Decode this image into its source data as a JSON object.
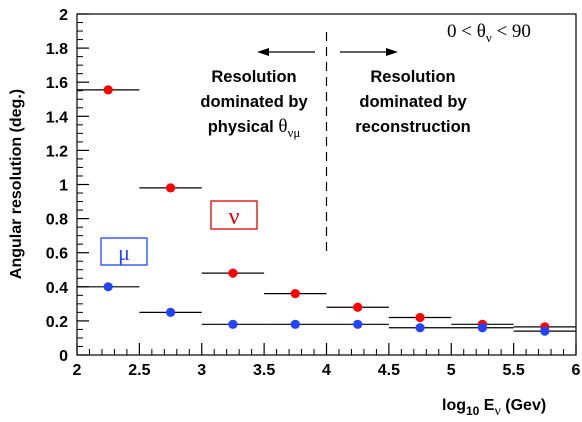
{
  "chart_data": {
    "type": "scatter",
    "xlabel": {
      "prefix": "log",
      "sub": "10",
      "main": " E",
      "var_sub": "ν",
      "unit": " (Gev)"
    },
    "ylabel": "Angular resolution (deg.)",
    "xlim": [
      2,
      6
    ],
    "ylim": [
      0,
      2
    ],
    "xticks": [
      "2",
      "2.5",
      "3",
      "3.5",
      "4",
      "4.5",
      "5",
      "5.5",
      "6"
    ],
    "yticks": [
      "0",
      "0.2",
      "0.4",
      "0.6",
      "0.8",
      "1",
      "1.2",
      "1.4",
      "1.6",
      "1.8",
      "2"
    ],
    "x_bin_half_width": 0.25,
    "series": [
      {
        "name": "ν",
        "color": "#ff0000",
        "x": [
          2.25,
          2.75,
          3.25,
          3.75,
          4.25,
          4.75,
          5.25,
          5.75
        ],
        "y": [
          1.555,
          0.98,
          0.48,
          0.36,
          0.28,
          0.22,
          0.18,
          0.165
        ]
      },
      {
        "name": "μ",
        "color": "#2244ff",
        "x": [
          2.25,
          2.75,
          3.25,
          3.75,
          4.25,
          4.75,
          5.25,
          5.75
        ],
        "y": [
          0.4,
          0.25,
          0.18,
          0.18,
          0.18,
          0.16,
          0.16,
          0.14
        ]
      }
    ],
    "legend_labels": {
      "nu": "ν",
      "mu": "μ"
    },
    "range_label": {
      "left": "0 < θ",
      "sub": "ν",
      "right": " < 90"
    },
    "divider_x": 4,
    "annotations": {
      "left_lines": [
        "Resolution",
        "dominated by",
        "physical "
      ],
      "left_theta": "θ",
      "left_theta_sub": "νμ",
      "right_lines": [
        "Resolution",
        "dominated by",
        "reconstruction"
      ]
    }
  }
}
